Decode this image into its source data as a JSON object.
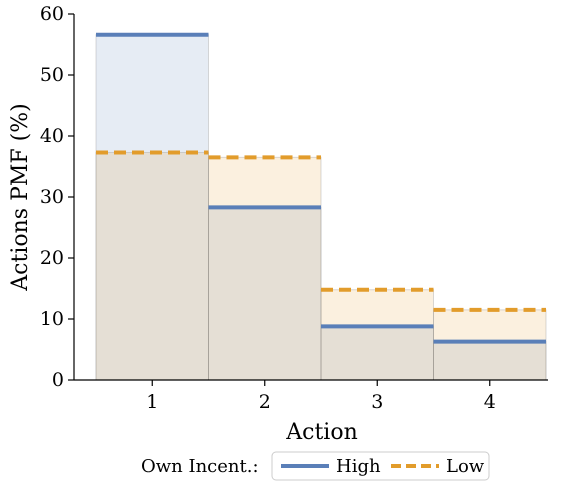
{
  "chart_data": {
    "type": "bar",
    "categories": [
      "1",
      "2",
      "3",
      "4"
    ],
    "xlabel": "Action",
    "ylabel": "Actions PMF (%)",
    "ylim": [
      0,
      60
    ],
    "yticks": [
      "0",
      "10",
      "20",
      "30",
      "40",
      "50",
      "60"
    ],
    "grid": false,
    "legend": {
      "title": "Own Incent.:",
      "placement": "bottom-center"
    },
    "series": [
      {
        "name": "High",
        "values": [
          56.6,
          28.3,
          8.8,
          6.3
        ],
        "color": "#5a7fb8",
        "line_style": "solid"
      },
      {
        "name": "Low",
        "values": [
          37.3,
          36.5,
          14.8,
          11.5
        ],
        "color": "#e29c2b",
        "line_style": "dashed"
      }
    ]
  }
}
